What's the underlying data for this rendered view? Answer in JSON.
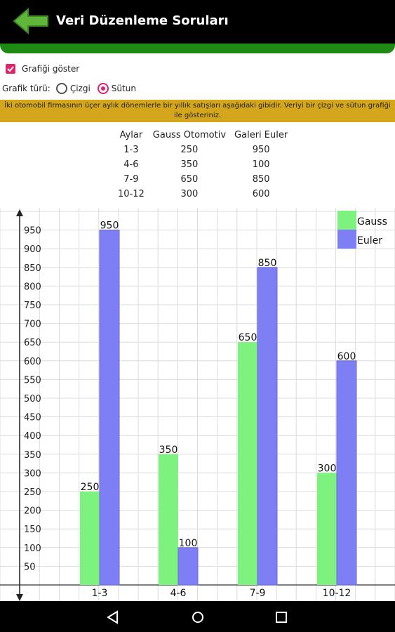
{
  "header": {
    "title": "Veri Düzenleme Soruları",
    "back_icon": "back-arrow-icon",
    "accent": "#1f8a13"
  },
  "show_chart": {
    "label": "Grafiği göster",
    "checked": true
  },
  "chart_type": {
    "label": "Grafik türü:",
    "options": [
      "Çizgi",
      "Sütun"
    ],
    "selected": "Sütun"
  },
  "problem_text": "İki otomobil firmasının üçer aylık dönemlerle bir yıllık satışları aşağıdaki gibidir. Veriyi bir çizgi ve sütun grafiği ile gösteriniz.",
  "table": {
    "headers": [
      "Aylar",
      "Gauss Otomotiv",
      "Galeri Euler"
    ],
    "rows": [
      [
        "1-3",
        "250",
        "950"
      ],
      [
        "4-6",
        "350",
        "100"
      ],
      [
        "7-9",
        "650",
        "850"
      ],
      [
        "10-12",
        "300",
        "600"
      ]
    ]
  },
  "chart_data": {
    "type": "bar",
    "categories": [
      "1-3",
      "4-6",
      "7-9",
      "10-12"
    ],
    "series": [
      {
        "name": "Gauss",
        "values": [
          250,
          350,
          650,
          300
        ],
        "color": "#7ef27e"
      },
      {
        "name": "Euler",
        "values": [
          950,
          100,
          850,
          600
        ],
        "color": "#7f7ff5"
      }
    ],
    "yticks": [
      50,
      100,
      150,
      200,
      250,
      300,
      350,
      400,
      450,
      500,
      550,
      600,
      650,
      700,
      750,
      800,
      850,
      900,
      950
    ],
    "ylim": [
      0,
      1000
    ],
    "grid": true,
    "legend": "top-right"
  },
  "navbar": {
    "icons": [
      "back-icon",
      "home-icon",
      "recents-icon"
    ]
  }
}
